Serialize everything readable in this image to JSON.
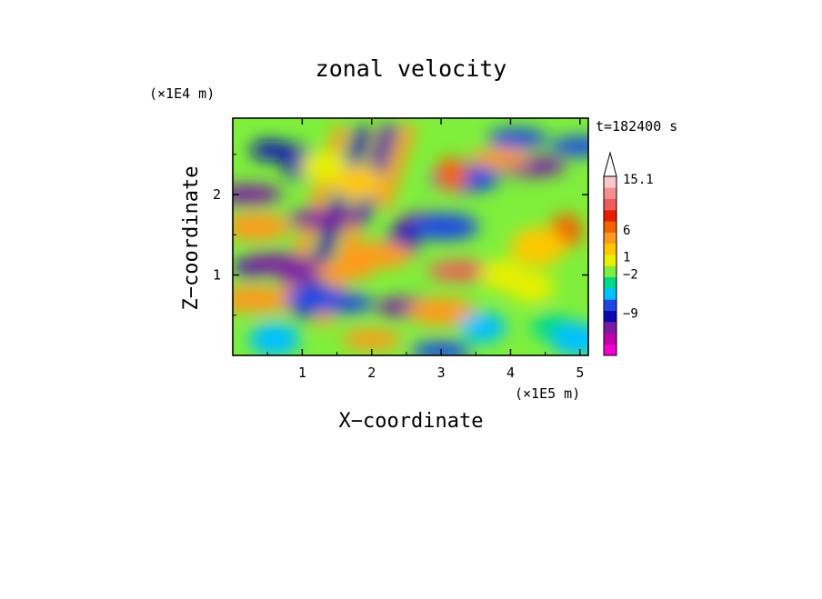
{
  "chart_data": {
    "type": "heatmap",
    "title": "zonal velocity",
    "xlabel": "X−coordinate",
    "ylabel": "Z−coordinate",
    "x_unit": "(×1E5 m)",
    "y_unit": "(×1E4 m)",
    "time_label": "t=182400 s",
    "xlim": [
      0,
      5.12
    ],
    "ylim": [
      0,
      2.95
    ],
    "x_ticks": [
      1,
      2,
      3,
      4,
      5
    ],
    "y_ticks": [
      1,
      2
    ],
    "x_tick_labels": [
      "1",
      "2",
      "3",
      "4",
      "5"
    ],
    "y_tick_labels": [
      "1",
      "2"
    ],
    "colorbar": {
      "colors": [
        "#f200d2",
        "#c000aa",
        "#7a1aa4",
        "#0a0ab0",
        "#1b48e4",
        "#00c0ff",
        "#00d88a",
        "#7fef3c",
        "#e8f000",
        "#ffc800",
        "#ff9a1e",
        "#f26300",
        "#e81c00",
        "#ef5a5a",
        "#f58f8f",
        "#f8c8c8"
      ],
      "tick_labels": [
        "15.1",
        "6",
        "1",
        "−2",
        "−9"
      ],
      "tick_levels": [
        15.1,
        6,
        1,
        -2,
        -9
      ],
      "extend_top": true
    },
    "features": [
      {
        "x": 0.22,
        "y": 2.0,
        "value": -9
      },
      {
        "x": 0.3,
        "y": 1.1,
        "value": -6
      },
      {
        "x": 0.6,
        "y": 1.15,
        "value": -9
      },
      {
        "x": 0.95,
        "y": 1.05,
        "value": -7
      },
      {
        "x": 1.3,
        "y": 1.7,
        "value": -9
      },
      {
        "x": 2.55,
        "y": 0.6,
        "value": -9
      },
      {
        "x": 2.85,
        "y": 1.65,
        "value": -9
      },
      {
        "x": 4.3,
        "y": 2.35,
        "value": -9
      },
      {
        "x": 3.05,
        "y": 1.6,
        "value": -4
      },
      {
        "x": 2.45,
        "y": 1.4,
        "value": -5
      },
      {
        "x": 3.35,
        "y": 2.2,
        "value": -4
      },
      {
        "x": 0.55,
        "y": 2.55,
        "value": -6
      },
      {
        "x": 0.95,
        "y": 2.4,
        "value": -5
      },
      {
        "x": 4.1,
        "y": 2.7,
        "value": -3
      },
      {
        "x": 3.0,
        "y": 0.05,
        "value": -3
      },
      {
        "x": 1.6,
        "y": 0.65,
        "value": -3
      },
      {
        "x": 1.2,
        "y": 0.7,
        "value": -4
      },
      {
        "x": 0.6,
        "y": 0.2,
        "value": -2
      },
      {
        "x": 1.8,
        "y": 2.15,
        "value": 2
      },
      {
        "x": 1.3,
        "y": 2.35,
        "value": 1.5
      },
      {
        "x": 3.15,
        "y": 2.25,
        "value": 5
      },
      {
        "x": 3.85,
        "y": 2.45,
        "value": 3
      },
      {
        "x": 2.1,
        "y": 1.25,
        "value": 4
      },
      {
        "x": 1.6,
        "y": 1.05,
        "value": 3
      },
      {
        "x": 3.0,
        "y": 0.55,
        "value": 4
      },
      {
        "x": 2.0,
        "y": 0.2,
        "value": 3
      },
      {
        "x": 3.3,
        "y": 1.05,
        "value": 9
      },
      {
        "x": 4.8,
        "y": 1.55,
        "value": 5
      },
      {
        "x": 4.4,
        "y": 1.35,
        "value": 2.5
      },
      {
        "x": 3.9,
        "y": 1.0,
        "value": 1.5
      },
      {
        "x": 4.3,
        "y": 0.85,
        "value": 1.5
      },
      {
        "x": 0.3,
        "y": 0.7,
        "value": 4
      },
      {
        "x": 0.35,
        "y": 1.6,
        "value": 4
      },
      {
        "x": 4.6,
        "y": 0.35,
        "value": -1
      },
      {
        "x": 4.95,
        "y": 0.2,
        "value": -2
      },
      {
        "x": 5.0,
        "y": 2.6,
        "value": -3
      },
      {
        "x": 3.6,
        "y": 0.35,
        "value": -1.5
      }
    ],
    "x_bands": [
      {
        "x": 1.15,
        "y0": 0.5,
        "y1": 2.9,
        "value": 3
      },
      {
        "x": 1.45,
        "y0": 0.4,
        "y1": 2.9,
        "value": -5
      },
      {
        "x": 1.75,
        "y0": 0.3,
        "y1": 2.9,
        "value": 4
      },
      {
        "x": 2.05,
        "y0": 1.6,
        "y1": 2.9,
        "value": -6
      },
      {
        "x": 2.35,
        "y0": 1.8,
        "y1": 2.9,
        "value": 3
      }
    ]
  }
}
